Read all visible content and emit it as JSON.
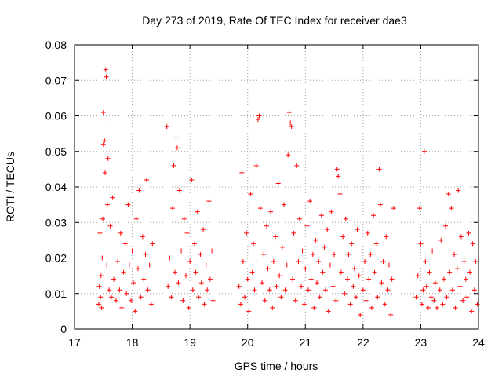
{
  "chart_data": {
    "type": "scatter",
    "title": "Day 273 of 2019, Rate Of TEC Index for receiver dae3",
    "xlabel": "GPS time / hours",
    "ylabel": "ROTI / TECUs",
    "xlim": [
      17,
      24
    ],
    "ylim": [
      0,
      0.08
    ],
    "x_ticks": [
      "17",
      "18",
      "19",
      "20",
      "21",
      "22",
      "23",
      "24"
    ],
    "y_ticks": [
      "0",
      "0.01",
      "0.02",
      "0.03",
      "0.04",
      "0.05",
      "0.06",
      "0.07",
      "0.08"
    ],
    "grid": true,
    "marker": "+",
    "color": "#ff0000",
    "series": [
      {
        "name": "ROTI",
        "points": [
          [
            17.42,
            0.007
          ],
          [
            17.43,
            0.012
          ],
          [
            17.44,
            0.027
          ],
          [
            17.45,
            0.009
          ],
          [
            17.46,
            0.015
          ],
          [
            17.47,
            0.006
          ],
          [
            17.48,
            0.02
          ],
          [
            17.49,
            0.031
          ],
          [
            17.5,
            0.052
          ],
          [
            17.5,
            0.061
          ],
          [
            17.51,
            0.058
          ],
          [
            17.52,
            0.053
          ],
          [
            17.53,
            0.044
          ],
          [
            17.54,
            0.073
          ],
          [
            17.55,
            0.071
          ],
          [
            17.56,
            0.018
          ],
          [
            17.57,
            0.035
          ],
          [
            17.58,
            0.048
          ],
          [
            17.6,
            0.011
          ],
          [
            17.62,
            0.029
          ],
          [
            17.64,
            0.009
          ],
          [
            17.66,
            0.037
          ],
          [
            17.68,
            0.014
          ],
          [
            17.7,
            0.022
          ],
          [
            17.72,
            0.008
          ],
          [
            17.75,
            0.019
          ],
          [
            17.78,
            0.011
          ],
          [
            17.8,
            0.027
          ],
          [
            17.82,
            0.006
          ],
          [
            17.85,
            0.016
          ],
          [
            17.88,
            0.024
          ],
          [
            17.9,
            0.01
          ],
          [
            17.93,
            0.035
          ],
          [
            17.95,
            0.018
          ],
          [
            17.98,
            0.008
          ],
          [
            18.0,
            0.022
          ],
          [
            18.02,
            0.013
          ],
          [
            18.05,
            0.005
          ],
          [
            18.07,
            0.031
          ],
          [
            18.1,
            0.017
          ],
          [
            18.12,
            0.039
          ],
          [
            18.15,
            0.009
          ],
          [
            18.18,
            0.026
          ],
          [
            18.2,
            0.014
          ],
          [
            18.23,
            0.021
          ],
          [
            18.25,
            0.042
          ],
          [
            18.27,
            0.011
          ],
          [
            18.3,
            0.018
          ],
          [
            18.33,
            0.007
          ],
          [
            18.35,
            0.024
          ],
          [
            18.6,
            0.057
          ],
          [
            18.62,
            0.012
          ],
          [
            18.65,
            0.02
          ],
          [
            18.68,
            0.009
          ],
          [
            18.7,
            0.034
          ],
          [
            18.72,
            0.046
          ],
          [
            18.74,
            0.016
          ],
          [
            18.76,
            0.054
          ],
          [
            18.78,
            0.051
          ],
          [
            18.8,
            0.013
          ],
          [
            18.82,
            0.039
          ],
          [
            18.85,
            0.022
          ],
          [
            18.88,
            0.008
          ],
          [
            18.9,
            0.031
          ],
          [
            18.93,
            0.015
          ],
          [
            18.95,
            0.027
          ],
          [
            18.98,
            0.006
          ],
          [
            19.0,
            0.019
          ],
          [
            19.03,
            0.042
          ],
          [
            19.05,
            0.011
          ],
          [
            19.08,
            0.024
          ],
          [
            19.1,
            0.016
          ],
          [
            19.13,
            0.033
          ],
          [
            19.15,
            0.009
          ],
          [
            19.18,
            0.021
          ],
          [
            19.2,
            0.013
          ],
          [
            19.23,
            0.028
          ],
          [
            19.25,
            0.007
          ],
          [
            19.28,
            0.018
          ],
          [
            19.3,
            0.011
          ],
          [
            19.33,
            0.036
          ],
          [
            19.35,
            0.014
          ],
          [
            19.38,
            0.022
          ],
          [
            19.4,
            0.008
          ],
          [
            19.85,
            0.012
          ],
          [
            19.88,
            0.007
          ],
          [
            19.9,
            0.044
          ],
          [
            19.92,
            0.019
          ],
          [
            19.95,
            0.009
          ],
          [
            19.98,
            0.027
          ],
          [
            20.0,
            0.014
          ],
          [
            20.02,
            0.005
          ],
          [
            20.05,
            0.038
          ],
          [
            20.08,
            0.016
          ],
          [
            20.1,
            0.024
          ],
          [
            20.12,
            0.011
          ],
          [
            20.15,
            0.046
          ],
          [
            20.18,
            0.059
          ],
          [
            20.2,
            0.06
          ],
          [
            20.22,
            0.034
          ],
          [
            20.25,
            0.013
          ],
          [
            20.28,
            0.021
          ],
          [
            20.3,
            0.008
          ],
          [
            20.33,
            0.029
          ],
          [
            20.35,
            0.017
          ],
          [
            20.38,
            0.011
          ],
          [
            20.4,
            0.033
          ],
          [
            20.43,
            0.006
          ],
          [
            20.45,
            0.019
          ],
          [
            20.48,
            0.026
          ],
          [
            20.5,
            0.012
          ],
          [
            20.53,
            0.041
          ],
          [
            20.55,
            0.015
          ],
          [
            20.58,
            0.009
          ],
          [
            20.6,
            0.023
          ],
          [
            20.63,
            0.035
          ],
          [
            20.65,
            0.011
          ],
          [
            20.68,
            0.018
          ],
          [
            20.7,
            0.049
          ],
          [
            20.72,
            0.061
          ],
          [
            20.74,
            0.058
          ],
          [
            20.76,
            0.057
          ],
          [
            20.78,
            0.014
          ],
          [
            20.8,
            0.027
          ],
          [
            20.83,
            0.008
          ],
          [
            20.85,
            0.046
          ],
          [
            20.88,
            0.019
          ],
          [
            20.9,
            0.031
          ],
          [
            20.93,
            0.012
          ],
          [
            20.95,
            0.022
          ],
          [
            20.98,
            0.007
          ],
          [
            21.0,
            0.017
          ],
          [
            21.03,
            0.029
          ],
          [
            21.05,
            0.011
          ],
          [
            21.08,
            0.036
          ],
          [
            21.1,
            0.014
          ],
          [
            21.13,
            0.021
          ],
          [
            21.15,
            0.006
          ],
          [
            21.18,
            0.025
          ],
          [
            21.2,
            0.013
          ],
          [
            21.23,
            0.019
          ],
          [
            21.25,
            0.009
          ],
          [
            21.28,
            0.032
          ],
          [
            21.3,
            0.016
          ],
          [
            21.33,
            0.023
          ],
          [
            21.35,
            0.011
          ],
          [
            21.38,
            0.028
          ],
          [
            21.4,
            0.005
          ],
          [
            21.43,
            0.018
          ],
          [
            21.45,
            0.033
          ],
          [
            21.48,
            0.012
          ],
          [
            21.5,
            0.021
          ],
          [
            21.53,
            0.008
          ],
          [
            21.55,
            0.045
          ],
          [
            21.57,
            0.043
          ],
          [
            21.6,
            0.038
          ],
          [
            21.62,
            0.016
          ],
          [
            21.65,
            0.026
          ],
          [
            21.68,
            0.01
          ],
          [
            21.7,
            0.031
          ],
          [
            21.73,
            0.014
          ],
          [
            21.75,
            0.021
          ],
          [
            21.78,
            0.007
          ],
          [
            21.8,
            0.024
          ],
          [
            21.83,
            0.012
          ],
          [
            21.85,
            0.017
          ],
          [
            21.88,
            0.009
          ],
          [
            21.9,
            0.028
          ],
          [
            21.93,
            0.015
          ],
          [
            21.95,
            0.004
          ],
          [
            21.98,
            0.022
          ],
          [
            22.0,
            0.011
          ],
          [
            22.03,
            0.019
          ],
          [
            22.05,
            0.008
          ],
          [
            22.08,
            0.027
          ],
          [
            22.1,
            0.014
          ],
          [
            22.13,
            0.021
          ],
          [
            22.15,
            0.006
          ],
          [
            22.18,
            0.032
          ],
          [
            22.2,
            0.016
          ],
          [
            22.23,
            0.024
          ],
          [
            22.25,
            0.009
          ],
          [
            22.28,
            0.045
          ],
          [
            22.3,
            0.035
          ],
          [
            22.32,
            0.013
          ],
          [
            22.35,
            0.019
          ],
          [
            22.38,
            0.007
          ],
          [
            22.4,
            0.026
          ],
          [
            22.43,
            0.011
          ],
          [
            22.45,
            0.018
          ],
          [
            22.48,
            0.004
          ],
          [
            22.5,
            0.014
          ],
          [
            22.53,
            0.034
          ],
          [
            22.92,
            0.009
          ],
          [
            22.95,
            0.015
          ],
          [
            22.98,
            0.034
          ],
          [
            23.0,
            0.024
          ],
          [
            23.02,
            0.007
          ],
          [
            23.04,
            0.011
          ],
          [
            23.06,
            0.05
          ],
          [
            23.08,
            0.019
          ],
          [
            23.1,
            0.012
          ],
          [
            23.13,
            0.006
          ],
          [
            23.15,
            0.016
          ],
          [
            23.18,
            0.009
          ],
          [
            23.2,
            0.022
          ],
          [
            23.23,
            0.008
          ],
          [
            23.25,
            0.013
          ],
          [
            23.28,
            0.006
          ],
          [
            23.3,
            0.018
          ],
          [
            23.33,
            0.011
          ],
          [
            23.35,
            0.025
          ],
          [
            23.38,
            0.007
          ],
          [
            23.4,
            0.014
          ],
          [
            23.43,
            0.029
          ],
          [
            23.45,
            0.009
          ],
          [
            23.48,
            0.038
          ],
          [
            23.5,
            0.016
          ],
          [
            23.53,
            0.034
          ],
          [
            23.55,
            0.011
          ],
          [
            23.58,
            0.021
          ],
          [
            23.6,
            0.006
          ],
          [
            23.63,
            0.017
          ],
          [
            23.65,
            0.039
          ],
          [
            23.68,
            0.012
          ],
          [
            23.7,
            0.026
          ],
          [
            23.73,
            0.008
          ],
          [
            23.75,
            0.019
          ],
          [
            23.78,
            0.014
          ],
          [
            23.8,
            0.009
          ],
          [
            23.83,
            0.027
          ],
          [
            23.85,
            0.016
          ],
          [
            23.88,
            0.005
          ],
          [
            23.9,
            0.024
          ],
          [
            23.93,
            0.011
          ],
          [
            23.95,
            0.019
          ],
          [
            23.98,
            0.007
          ]
        ]
      }
    ]
  }
}
